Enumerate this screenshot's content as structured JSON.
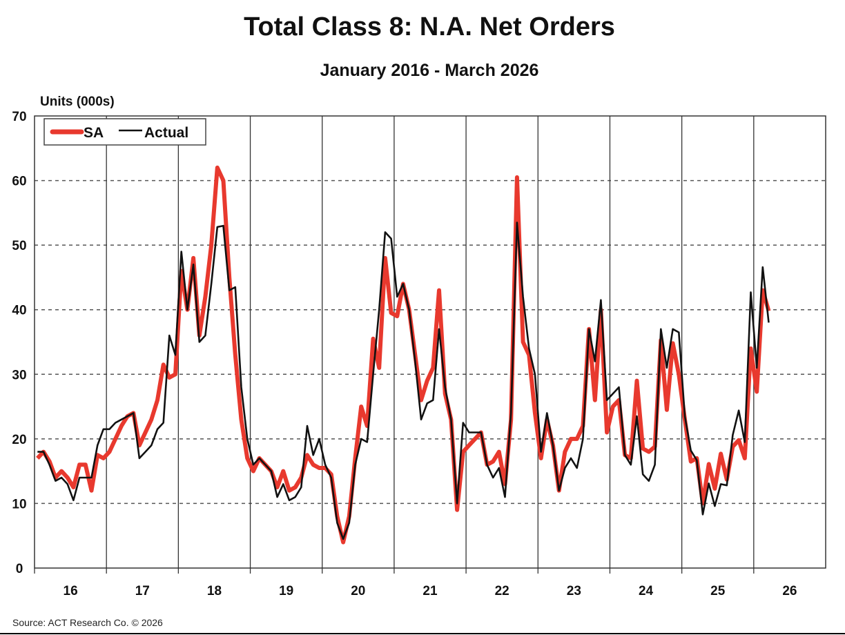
{
  "chart_data": {
    "type": "line",
    "title": "Total Class 8: N.A. Net Orders",
    "subtitle": "January 2016 - March 2026",
    "ylabel": "Units (000s)",
    "xlabel": "",
    "ylim": [
      0,
      70
    ],
    "yticks": [
      "0",
      "10",
      "20",
      "30",
      "40",
      "50",
      "60",
      "70"
    ],
    "xticks": [
      "16",
      "17",
      "18",
      "19",
      "20",
      "21",
      "22",
      "23",
      "24",
      "25",
      "26"
    ],
    "x_start": "2016-01",
    "x_end": "2026-03",
    "x_frequency": "monthly",
    "grid": {
      "horizontal": "dashed",
      "vertical": "solid year separators"
    },
    "legend": {
      "placement": "top-left",
      "entries": [
        "SA",
        "Actual"
      ]
    },
    "series": [
      {
        "name": "SA",
        "color": "#e8392e",
        "values": [
          17,
          18,
          16.5,
          14,
          15,
          14,
          12.5,
          16,
          16,
          12,
          17.5,
          17,
          18,
          20,
          22,
          23.5,
          24,
          19,
          21,
          23,
          26,
          31.5,
          29.5,
          30,
          46,
          40,
          48,
          36,
          42,
          50,
          62,
          60,
          45,
          33,
          23,
          17,
          15,
          17,
          16,
          15,
          12.5,
          15,
          12,
          12.5,
          14,
          17.5,
          16,
          15.5,
          15.5,
          14.5,
          8,
          4,
          8,
          17,
          25,
          22,
          35.5,
          31,
          48,
          39.5,
          39,
          44,
          40,
          33,
          26,
          29,
          31,
          43,
          27,
          23,
          9,
          18,
          19,
          20,
          21,
          16,
          16.5,
          18,
          13,
          23,
          60.5,
          35,
          33,
          24,
          17,
          23,
          19,
          12,
          18,
          20,
          20,
          22,
          37,
          26,
          40,
          21,
          25,
          26,
          17.5,
          17,
          29,
          18.5,
          18,
          18.8,
          35.3,
          24.5,
          34.8,
          30,
          23,
          16.5,
          17,
          10,
          16.1,
          12.3,
          17.7,
          13.7,
          18.8,
          19.8,
          17,
          34,
          27.3,
          43,
          39.8
        ]
      },
      {
        "name": "Actual",
        "color": "#111111",
        "values": [
          18,
          18,
          16,
          13.5,
          14,
          13,
          10.5,
          14,
          14,
          14,
          19,
          21.5,
          21.5,
          22.5,
          23,
          23.5,
          24,
          17,
          18,
          19,
          21.5,
          22.5,
          36,
          33,
          49,
          40,
          47,
          35,
          36,
          44,
          52.8,
          53,
          43,
          43.5,
          28,
          20,
          16,
          17,
          16,
          15,
          11,
          13,
          10.5,
          11,
          12.5,
          22,
          17.5,
          20,
          16,
          14,
          7,
          4.5,
          7,
          16,
          20,
          19.5,
          30,
          40,
          52,
          51,
          42,
          44,
          40,
          32,
          23,
          25.5,
          26,
          37,
          28,
          23,
          10,
          22.5,
          21,
          21,
          21,
          16,
          14,
          15.5,
          11,
          24,
          53.5,
          42,
          34,
          30,
          18,
          24,
          19,
          12,
          15.5,
          17,
          15.5,
          20,
          37,
          32,
          41.5,
          26,
          27,
          28,
          17.5,
          16,
          23.5,
          14.5,
          13.5,
          16,
          37,
          31,
          37,
          36.5,
          23.5,
          18.2,
          16.7,
          8.3,
          13.1,
          9.6,
          13,
          12.8,
          20.6,
          24.4,
          19.5,
          42.7,
          31,
          46.6,
          38
        ]
      }
    ],
    "source": "Source: ACT Research Co. © 2026"
  }
}
